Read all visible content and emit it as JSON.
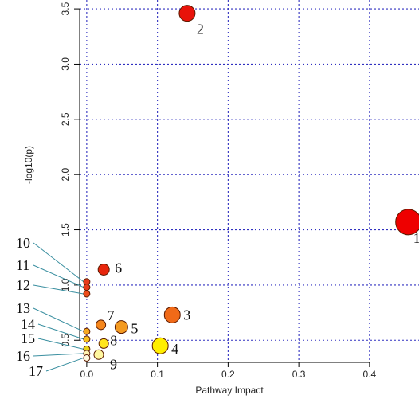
{
  "chart_data": {
    "type": "scatter",
    "xlabel": "Pathway Impact",
    "ylabel": "-log10(p)",
    "xlim": [
      -0.01,
      0.47
    ],
    "ylim": [
      0.3,
      3.58
    ],
    "xticks": [
      0.0,
      0.1,
      0.2,
      0.3,
      0.4
    ],
    "yticks": [
      0.5,
      1.0,
      1.5,
      2.0,
      2.5,
      3.0,
      3.5
    ],
    "xtick_labels": [
      "0.0",
      "0.1",
      "0.2",
      "0.3",
      "0.4"
    ],
    "ytick_labels": [
      "0.5",
      "1.0",
      "1.5",
      "2.0",
      "2.5",
      "3.0",
      "3.5"
    ],
    "grid": true,
    "points": [
      {
        "label": "1",
        "x": 0.455,
        "y": 1.57,
        "r": 16,
        "color": "#ee0000"
      },
      {
        "label": "2",
        "x": 0.142,
        "y": 3.46,
        "r": 10,
        "color": "#e8130a"
      },
      {
        "label": "3",
        "x": 0.121,
        "y": 0.73,
        "r": 10,
        "color": "#f06a18"
      },
      {
        "label": "4",
        "x": 0.104,
        "y": 0.45,
        "r": 10,
        "color": "#ffee00"
      },
      {
        "label": "5",
        "x": 0.049,
        "y": 0.62,
        "r": 8,
        "color": "#f39a22"
      },
      {
        "label": "6",
        "x": 0.024,
        "y": 1.14,
        "r": 7,
        "color": "#e8260c"
      },
      {
        "label": "7",
        "x": 0.02,
        "y": 0.64,
        "r": 6,
        "color": "#f5861c"
      },
      {
        "label": "8",
        "x": 0.024,
        "y": 0.47,
        "r": 6,
        "color": "#ffe51c"
      },
      {
        "label": "9",
        "x": 0.017,
        "y": 0.37,
        "r": 6,
        "color": "#fff7a0"
      },
      {
        "label": "10",
        "x": 0.0,
        "y": 1.03,
        "r": 4,
        "color": "#e8391a"
      },
      {
        "label": "11",
        "x": 0.0,
        "y": 0.98,
        "r": 4,
        "color": "#e8391a"
      },
      {
        "label": "12",
        "x": 0.0,
        "y": 0.92,
        "r": 4,
        "color": "#ec4d1c"
      },
      {
        "label": "13",
        "x": 0.0,
        "y": 0.58,
        "r": 4,
        "color": "#f5a820"
      },
      {
        "label": "14",
        "x": 0.0,
        "y": 0.51,
        "r": 4,
        "color": "#f7c020"
      },
      {
        "label": "15",
        "x": 0.0,
        "y": 0.42,
        "r": 4,
        "color": "#e8d21a"
      },
      {
        "label": "16",
        "x": 0.0,
        "y": 0.38,
        "r": 4,
        "color": "#fff3b0"
      },
      {
        "label": "17",
        "x": 0.0,
        "y": 0.34,
        "r": 4,
        "color": "#fffbe0"
      }
    ]
  }
}
